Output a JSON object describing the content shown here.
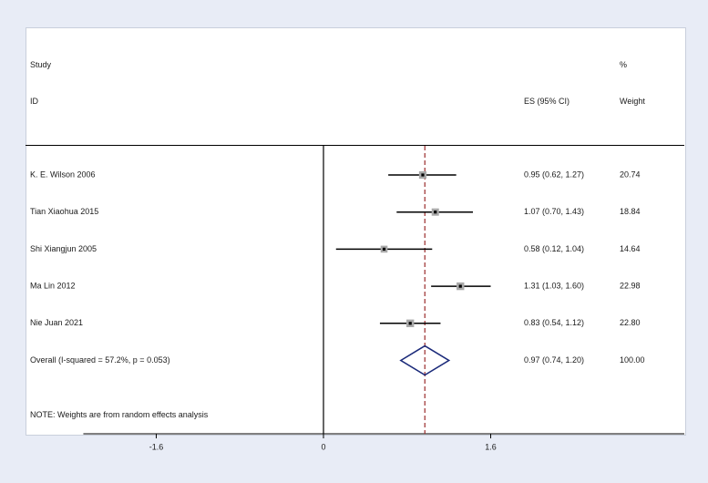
{
  "headers": {
    "study_top": "Study",
    "study_bottom": "ID",
    "es": "ES (95% CI)",
    "weight_top": "%",
    "weight_bottom": "Weight"
  },
  "note": "NOTE: Weights are from random effects analysis",
  "colors": {
    "axis": "#000000",
    "ci_line": "#000000",
    "box": "#a9a9a9",
    "diamond": "#1b2a7a",
    "ref_line": "#9b2d2d"
  },
  "chart_data": {
    "type": "forest",
    "xlim": [
      -2.35,
      4.85
    ],
    "xticks": [
      -1.6,
      0,
      1.6
    ],
    "xtick_labels": [
      "-1.6",
      "0",
      "1.6"
    ],
    "overall_reference": 0.97,
    "studies": [
      {
        "label": "K. E. Wilson 2006",
        "es": 0.95,
        "lo": 0.62,
        "hi": 1.27,
        "ci_text": "0.95 (0.62, 1.27)",
        "weight": 20.74,
        "weight_text": "20.74"
      },
      {
        "label": "Tian Xiaohua 2015",
        "es": 1.07,
        "lo": 0.7,
        "hi": 1.43,
        "ci_text": "1.07 (0.70, 1.43)",
        "weight": 18.84,
        "weight_text": "18.84"
      },
      {
        "label": "Shi Xiangjun 2005",
        "es": 0.58,
        "lo": 0.12,
        "hi": 1.04,
        "ci_text": "0.58 (0.12, 1.04)",
        "weight": 14.64,
        "weight_text": "14.64"
      },
      {
        "label": "Ma Lin 2012",
        "es": 1.31,
        "lo": 1.03,
        "hi": 1.6,
        "ci_text": "1.31 (1.03, 1.60)",
        "weight": 22.98,
        "weight_text": "22.98"
      },
      {
        "label": "Nie Juan 2021",
        "es": 0.83,
        "lo": 0.54,
        "hi": 1.12,
        "ci_text": "0.83 (0.54, 1.12)",
        "weight": 22.8,
        "weight_text": "22.80"
      }
    ],
    "overall": {
      "label": "Overall  (I-squared = 57.2%, p = 0.053)",
      "es": 0.97,
      "lo": 0.74,
      "hi": 1.2,
      "ci_text": "0.97 (0.74, 1.20)",
      "weight_text": "100.00"
    }
  }
}
